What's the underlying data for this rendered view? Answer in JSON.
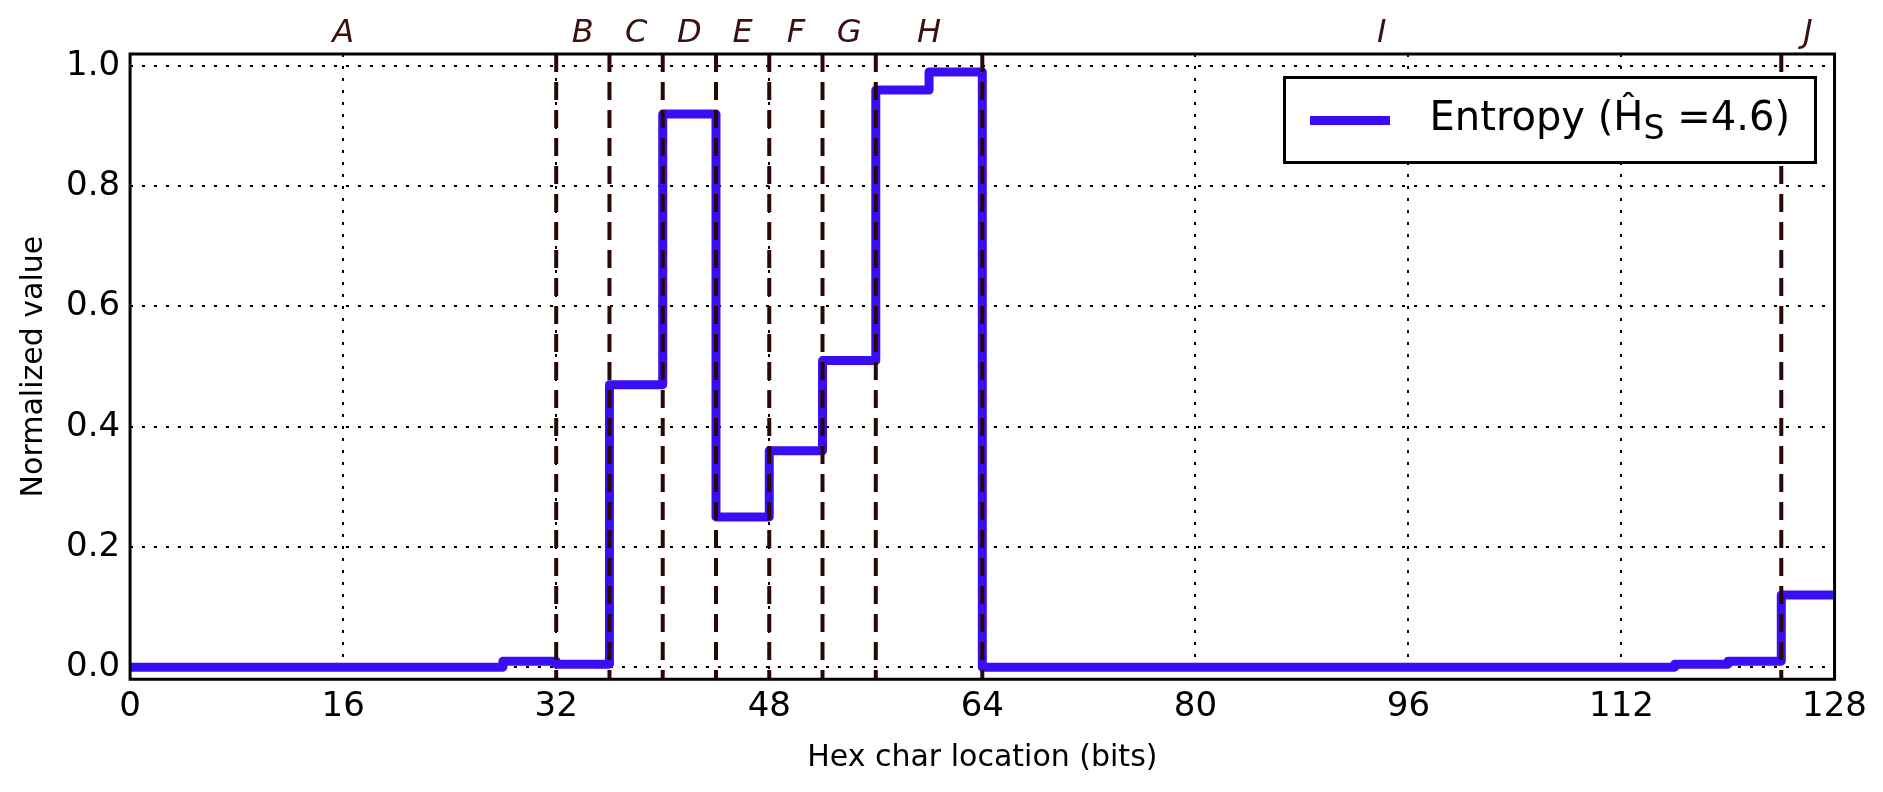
{
  "chart_data": {
    "type": "step",
    "xlabel": "Hex char location (bits)",
    "ylabel": "Normalized value",
    "x": [
      0,
      28,
      32,
      36,
      40,
      44,
      48,
      52,
      56,
      60,
      64,
      116,
      120,
      124,
      128
    ],
    "series": [
      {
        "name": "Entropy (Ĥ$_{S}$ =4.6)",
        "color": "#3a0ef5",
        "values": [
          0,
          0.01,
          0.005,
          0.47,
          0.92,
          0.25,
          0.36,
          0.51,
          0.96,
          0.99,
          0,
          0.005,
          0.01,
          0.12,
          0.12
        ]
      }
    ],
    "xlim": [
      0,
      128
    ],
    "xticks": [
      0,
      16,
      32,
      48,
      64,
      80,
      96,
      112,
      128
    ],
    "ylim": [
      -0.02,
      1.02
    ],
    "yticks": [
      {
        "value": 0,
        "label": "0.0"
      },
      {
        "value": 0.2,
        "label": "0.2"
      },
      {
        "value": 0.4,
        "label": "0.4"
      },
      {
        "value": 0.6,
        "label": "0.6"
      },
      {
        "value": 0.8,
        "label": "0.8"
      },
      {
        "value": 1,
        "label": "1.0"
      }
    ],
    "annotations": [
      "A",
      "B",
      "C",
      "D",
      "E",
      "F",
      "G",
      "H",
      "I",
      "J"
    ],
    "ref_lines": [
      {
        "axis": "x",
        "value": 32,
        "color": "#2a0808",
        "line_style": "dashed"
      },
      {
        "axis": "x",
        "value": 36,
        "color": "#2a0808",
        "line_style": "dashed"
      },
      {
        "axis": "x",
        "value": 40,
        "color": "#2a0808",
        "line_style": "dashed"
      },
      {
        "axis": "x",
        "value": 44,
        "color": "#2a0808",
        "line_style": "dashed"
      },
      {
        "axis": "x",
        "value": 48,
        "color": "#2a0808",
        "line_style": "dashed"
      },
      {
        "axis": "x",
        "value": 52,
        "color": "#2a0808",
        "line_style": "dashed"
      },
      {
        "axis": "x",
        "value": 56,
        "color": "#2a0808",
        "line_style": "dashed"
      },
      {
        "axis": "x",
        "value": 64,
        "color": "#2a0808",
        "line_style": "dashed"
      },
      {
        "axis": "x",
        "value": 124,
        "color": "#2a0808",
        "line_style": "dashed"
      }
    ],
    "grid": true,
    "legend": "top right",
    "line_style": "solid",
    "marker": "none"
  }
}
